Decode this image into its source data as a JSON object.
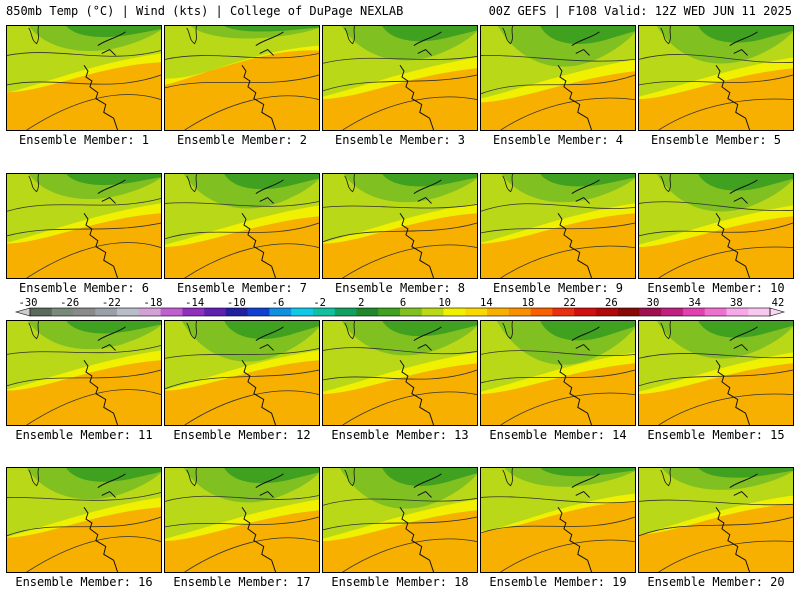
{
  "header": {
    "left": "850mb Temp (°C) | Wind (kts) | College of DuPage NEXLAB",
    "right": "00Z GEFS | F108 Valid: 12Z WED JUN 11 2025"
  },
  "colorbar": {
    "labels": [
      "-30",
      "-26",
      "-22",
      "-18",
      "-14",
      "-10",
      "-6",
      "-2",
      "2",
      "6",
      "10",
      "14",
      "18",
      "22",
      "26",
      "30",
      "34",
      "38",
      "42"
    ],
    "colors": [
      "#5a6a5a",
      "#7a8a7a",
      "#8a8a8a",
      "#9aa0a8",
      "#b8bcc8",
      "#d4a0d8",
      "#c060d0",
      "#9030c0",
      "#6020b0",
      "#2020a0",
      "#1040d0",
      "#1090e0",
      "#10c8e8",
      "#10c0a0",
      "#10a060",
      "#208828",
      "#40a020",
      "#80c020",
      "#b8d818",
      "#f0f000",
      "#f8d800",
      "#f8b000",
      "#f89000",
      "#f86000",
      "#e83010",
      "#d01010",
      "#b00808",
      "#880808",
      "#a01050",
      "#c02080",
      "#e040b0",
      "#f070d0",
      "#f8a8e8",
      "#f8c8f0"
    ]
  },
  "members": [
    {
      "label": "Ensemble Member: 1",
      "green_extent": 0.4,
      "orange_extent": 0.55
    },
    {
      "label": "Ensemble Member: 2",
      "green_extent": 0.2,
      "orange_extent": 0.75
    },
    {
      "label": "Ensemble Member: 3",
      "green_extent": 0.55,
      "orange_extent": 0.45
    },
    {
      "label": "Ensemble Member: 4",
      "green_extent": 0.65,
      "orange_extent": 0.4
    },
    {
      "label": "Ensemble Member: 5",
      "green_extent": 0.6,
      "orange_extent": 0.45
    },
    {
      "label": "Ensemble Member: 6",
      "green_extent": 0.4,
      "orange_extent": 0.5
    },
    {
      "label": "Ensemble Member: 7",
      "green_extent": 0.55,
      "orange_extent": 0.45
    },
    {
      "label": "Ensemble Member: 8",
      "green_extent": 0.45,
      "orange_extent": 0.5
    },
    {
      "label": "Ensemble Member: 9",
      "green_extent": 0.45,
      "orange_extent": 0.5
    },
    {
      "label": "Ensemble Member: 10",
      "green_extent": 0.6,
      "orange_extent": 0.45
    },
    {
      "label": "Ensemble Member: 11",
      "green_extent": 0.45,
      "orange_extent": 0.5
    },
    {
      "label": "Ensemble Member: 12",
      "green_extent": 0.65,
      "orange_extent": 0.5
    },
    {
      "label": "Ensemble Member: 13",
      "green_extent": 0.55,
      "orange_extent": 0.45
    },
    {
      "label": "Ensemble Member: 14",
      "green_extent": 0.7,
      "orange_extent": 0.45
    },
    {
      "label": "Ensemble Member: 15",
      "green_extent": 0.6,
      "orange_extent": 0.45
    },
    {
      "label": "Ensemble Member: 16",
      "green_extent": 0.5,
      "orange_extent": 0.5
    },
    {
      "label": "Ensemble Member: 17",
      "green_extent": 0.55,
      "orange_extent": 0.45
    },
    {
      "label": "Ensemble Member: 18",
      "green_extent": 0.65,
      "orange_extent": 0.45
    },
    {
      "label": "Ensemble Member: 19",
      "green_extent": 0.3,
      "orange_extent": 0.6
    },
    {
      "label": "Ensemble Member: 20",
      "green_extent": 0.35,
      "orange_extent": 0.55
    }
  ]
}
